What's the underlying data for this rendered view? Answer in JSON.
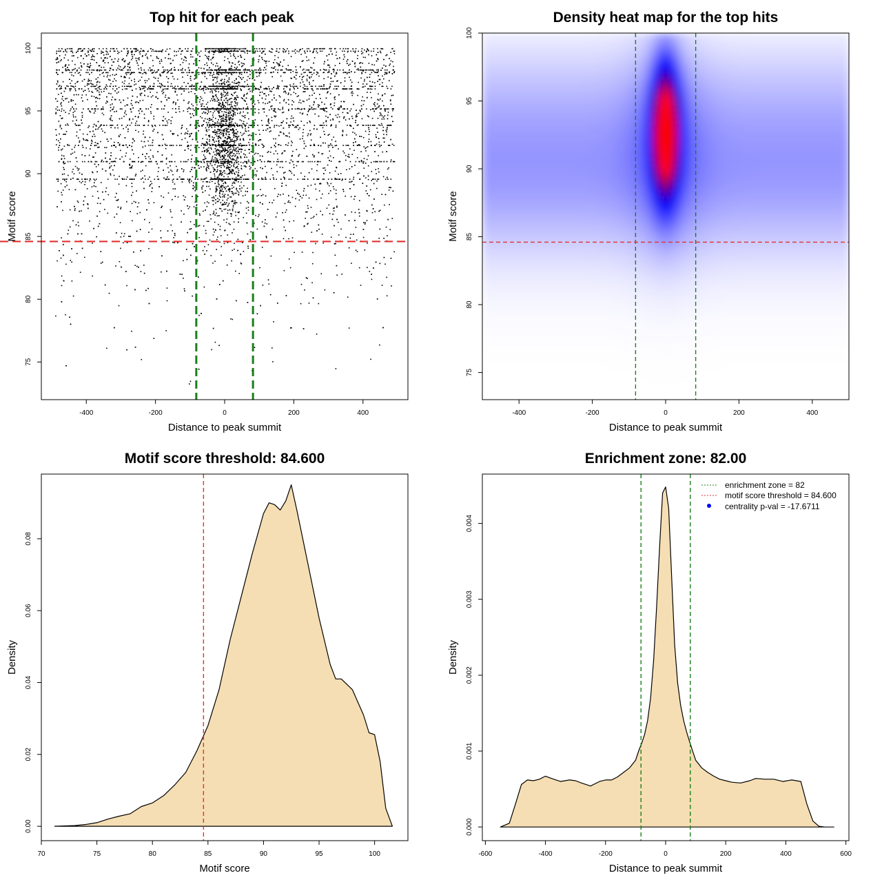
{
  "chart_data": [
    {
      "type": "scatter",
      "title": "Top hit for each peak",
      "xlabel": "Distance to peak summit",
      "ylabel": "Motif score",
      "xlim": [
        -530,
        530
      ],
      "ylim": [
        72,
        101.2
      ],
      "xticks": [
        -400,
        -200,
        0,
        200,
        400
      ],
      "yticks": [
        75,
        80,
        85,
        90,
        95,
        100
      ],
      "grid": false,
      "points_description_counts": {
        "uniform_background": 5200,
        "central_cluster": 1900
      },
      "x_range": [
        -490,
        490
      ],
      "y_range": [
        73,
        100
      ],
      "central_cluster": {
        "x_center": 0,
        "x_sd": 25,
        "y_mean": 92.5,
        "y_sd": 3.2
      },
      "threshold_lines": {
        "vertical": [
          -82,
          82
        ],
        "vertical_color": "#1a7f1a",
        "horizontal": 84.6,
        "horizontal_color": "#e03030"
      }
    },
    {
      "type": "heatmap",
      "title": "Density heat map for the top hits",
      "xlabel": "Distance to peak summit",
      "ylabel": "Motif score",
      "xlim": [
        -500,
        500
      ],
      "ylim": [
        73,
        100
      ],
      "xticks": [
        -400,
        -200,
        0,
        200,
        400
      ],
      "yticks": [
        75,
        80,
        85,
        90,
        95,
        100
      ],
      "color_scale": [
        "#ffffff",
        "#0000ff",
        "#ff0000"
      ],
      "hotspot": {
        "x": 0,
        "y": 92.8,
        "x_sd": 25,
        "y_sd": 3.4
      },
      "background_band": {
        "y_center": 90,
        "y_sd": 4.5
      },
      "threshold_lines": {
        "vertical": [
          -82,
          82
        ],
        "vertical_color": "#1a7f1a",
        "horizontal": 84.6,
        "horizontal_color": "#e03030"
      }
    },
    {
      "type": "area",
      "title": "Motif score threshold: 84.600",
      "xlabel": "Motif score",
      "ylabel": "Density",
      "xlim": [
        70,
        103
      ],
      "ylim": [
        -0.004,
        0.098
      ],
      "xticks": [
        70,
        75,
        80,
        85,
        90,
        95,
        100
      ],
      "yticks": [
        0.0,
        0.02,
        0.04,
        0.06,
        0.08
      ],
      "ytick_labels": [
        "0.00",
        "0.02",
        "0.04",
        "0.06",
        "0.08"
      ],
      "fill_color": "#f5deb3",
      "x": [
        71.2,
        73,
        74,
        75,
        76,
        77,
        78,
        79,
        80,
        81,
        82,
        83,
        84,
        85,
        86,
        87,
        88,
        89,
        90,
        90.5,
        91,
        91.5,
        92,
        92.5,
        93,
        94,
        95,
        96,
        96.5,
        97,
        98,
        99,
        99.5,
        100,
        100.5,
        101,
        101.6
      ],
      "y": [
        0,
        0.0002,
        0.0005,
        0.001,
        0.002,
        0.0028,
        0.0035,
        0.0055,
        0.0065,
        0.0085,
        0.0115,
        0.015,
        0.021,
        0.028,
        0.038,
        0.052,
        0.064,
        0.076,
        0.087,
        0.09,
        0.0895,
        0.088,
        0.0905,
        0.095,
        0.088,
        0.073,
        0.058,
        0.045,
        0.041,
        0.041,
        0.038,
        0.031,
        0.026,
        0.0255,
        0.018,
        0.005,
        0
      ],
      "threshold_line": {
        "x": 84.6,
        "color": "#e03030"
      }
    },
    {
      "type": "area",
      "title": "Enrichment zone: 82.00",
      "xlabel": "Distance to peak summit",
      "ylabel": "Density",
      "xlim": [
        -610,
        610
      ],
      "ylim": [
        -0.00018,
        0.00465
      ],
      "xticks": [
        -600,
        -400,
        -200,
        0,
        200,
        400,
        600
      ],
      "yticks": [
        0.0,
        0.001,
        0.002,
        0.003,
        0.004
      ],
      "ytick_labels": [
        "0.000",
        "0.001",
        "0.002",
        "0.003",
        "0.004"
      ],
      "fill_color": "#f5deb3",
      "x": [
        -550,
        -520,
        -500,
        -480,
        -460,
        -440,
        -420,
        -400,
        -380,
        -350,
        -320,
        -300,
        -280,
        -250,
        -220,
        -200,
        -180,
        -160,
        -140,
        -120,
        -100,
        -90,
        -80,
        -70,
        -60,
        -50,
        -40,
        -30,
        -20,
        -10,
        0,
        10,
        20,
        30,
        40,
        50,
        60,
        70,
        80,
        90,
        100,
        120,
        140,
        160,
        180,
        200,
        220,
        250,
        280,
        300,
        330,
        360,
        390,
        420,
        450,
        470,
        490,
        510,
        530,
        560
      ],
      "y": [
        0,
        5e-05,
        0.0003,
        0.00056,
        0.00062,
        0.00061,
        0.00063,
        0.00067,
        0.00064,
        0.0006,
        0.00062,
        0.00061,
        0.00058,
        0.00054,
        0.0006,
        0.00062,
        0.00062,
        0.00066,
        0.00072,
        0.00078,
        0.00088,
        0.001,
        0.0011,
        0.00122,
        0.0014,
        0.0017,
        0.0022,
        0.0029,
        0.0037,
        0.0044,
        0.00448,
        0.0042,
        0.0033,
        0.0024,
        0.0019,
        0.0016,
        0.0014,
        0.00125,
        0.00112,
        0.001,
        0.00088,
        0.00078,
        0.00072,
        0.00067,
        0.00063,
        0.00061,
        0.00059,
        0.00058,
        0.00061,
        0.00064,
        0.00063,
        0.00063,
        0.0006,
        0.00062,
        0.0006,
        0.0003,
        8e-05,
        1e-05,
        0,
        0
      ],
      "zone_lines": {
        "x": [
          -82,
          82
        ],
        "color": "#1a7f1a"
      },
      "legend": {
        "placement": "top-right",
        "entries": [
          {
            "label": "enrichment zone = 82",
            "style": "dotted-line",
            "color": "#1a7f1a"
          },
          {
            "label": "motif score threshold = 84.600",
            "style": "dotted-line",
            "color": "#e03030"
          },
          {
            "label": "centrality p-val = -17.6711",
            "style": "dot",
            "color": "#0000ff"
          }
        ]
      }
    }
  ]
}
